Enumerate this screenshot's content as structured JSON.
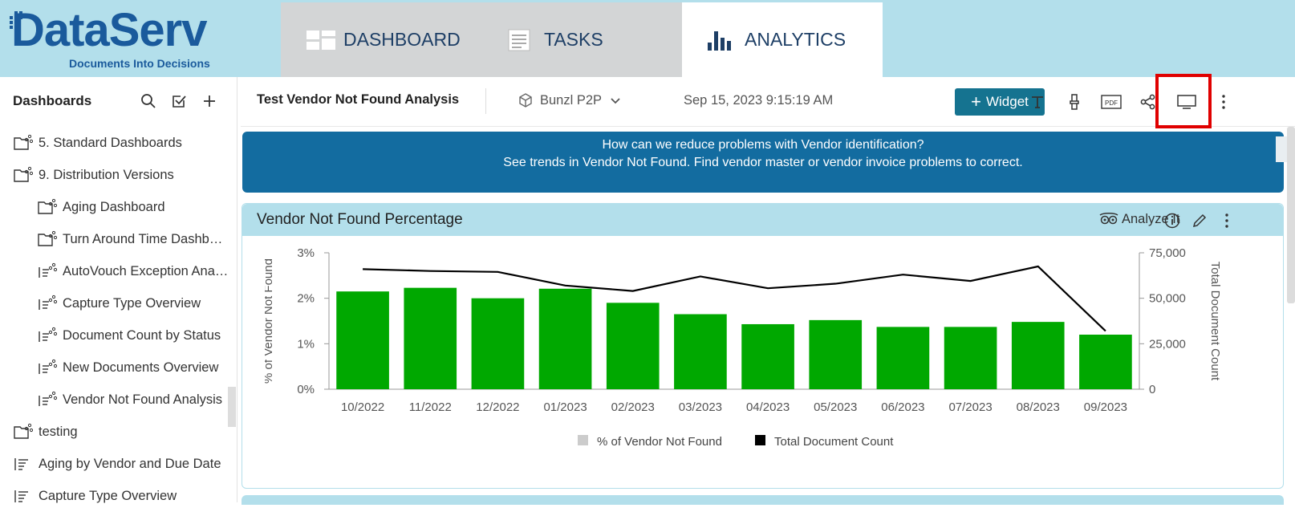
{
  "logo": {
    "brand": "DataServ",
    "tagline": "Documents Into Decisions"
  },
  "nav": {
    "tabs": [
      {
        "label": "DASHBOARD",
        "icon": "dashboard-icon"
      },
      {
        "label": "TASKS",
        "icon": "tasks-icon"
      },
      {
        "label": "ANALYTICS",
        "icon": "analytics-icon",
        "active": true
      }
    ]
  },
  "sidebar": {
    "title": "Dashboards",
    "items": [
      {
        "label": "5. Standard Dashboards",
        "icon": "folder-share-icon",
        "level": 0
      },
      {
        "label": "9. Distribution Versions",
        "icon": "folder-open-share-icon",
        "level": 0
      },
      {
        "label": "Aging Dashboard",
        "icon": "folder-share-icon",
        "level": 1
      },
      {
        "label": "Turn Around Time Dashb…",
        "icon": "folder-share-icon",
        "level": 1
      },
      {
        "label": "AutoVouch Exception Ana…",
        "icon": "list-share-icon",
        "level": 1
      },
      {
        "label": "Capture Type Overview",
        "icon": "list-share-icon",
        "level": 1
      },
      {
        "label": "Document Count by Status",
        "icon": "list-share-icon",
        "level": 1
      },
      {
        "label": "New Documents Overview",
        "icon": "list-share-icon",
        "level": 1
      },
      {
        "label": "Vendor Not Found Analysis",
        "icon": "list-share-icon",
        "level": 1
      },
      {
        "label": "testing",
        "icon": "folder-share-icon",
        "level": 0
      },
      {
        "label": "Aging by Vendor and Due Date",
        "icon": "list-icon",
        "level": 0
      },
      {
        "label": "Capture Type Overview",
        "icon": "list-icon",
        "level": 0
      }
    ]
  },
  "toolbar": {
    "dashboard_title": "Test Vendor Not Found Analysis",
    "datasource": "Bunzl P2P",
    "timestamp": "Sep 15, 2023 9:15:19 AM",
    "widget_label": "Widget"
  },
  "banner": {
    "line1": "How can we reduce problems with Vendor identification?",
    "line2": "See trends in Vendor Not Found.  Find vendor master or vendor invoice problems to correct."
  },
  "panel": {
    "title": "Vendor Not Found Percentage",
    "analyze_label": "Analyze It"
  },
  "colors": {
    "accent": "#157390",
    "banner": "#136ca0",
    "bar": "#00a800",
    "line": "#000000",
    "highlight": "#e00000"
  },
  "chart_data": {
    "type": "bar",
    "categories": [
      "10/2022",
      "11/2022",
      "12/2022",
      "01/2023",
      "02/2023",
      "03/2023",
      "04/2023",
      "05/2023",
      "06/2023",
      "07/2023",
      "08/2023",
      "09/2023"
    ],
    "series": [
      {
        "name": "% of Vendor Not Found",
        "type": "bar",
        "axis": "left",
        "values": [
          2.15,
          2.23,
          2.0,
          2.21,
          1.9,
          1.65,
          1.43,
          1.52,
          1.37,
          1.37,
          1.48,
          1.2
        ]
      },
      {
        "name": "Total Document Count",
        "type": "line",
        "axis": "right",
        "values": [
          66000,
          65000,
          64500,
          57000,
          54000,
          62000,
          55500,
          58000,
          63000,
          59500,
          67500,
          32000
        ]
      }
    ],
    "ylabel": "% of Vendor Not Found",
    "ylabel_right": "Total Document Count",
    "ylim": [
      0,
      3
    ],
    "ylim_right": [
      0,
      75000
    ],
    "yticks": [
      "0%",
      "1%",
      "2%",
      "3%"
    ],
    "yticks_right": [
      "0",
      "25,000",
      "50,000",
      "75,000"
    ],
    "legend_placement": "bottom-center",
    "grid": false
  }
}
